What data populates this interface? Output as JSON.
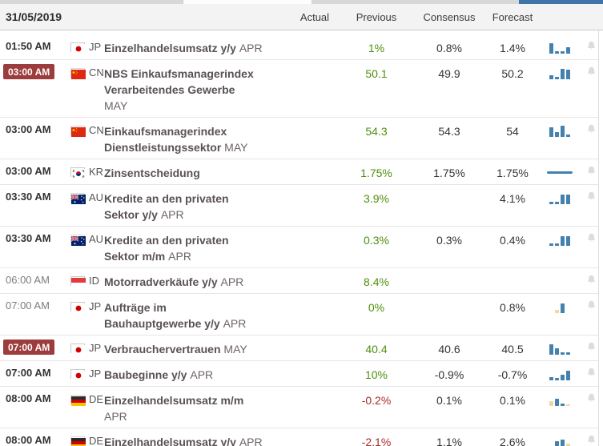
{
  "header": {
    "date": "31/05/2019",
    "columns": [
      "Actual",
      "Previous",
      "Consensus",
      "Forecast"
    ]
  },
  "colors": {
    "accent_blue": "#3e74a8",
    "badge_red": "#9d3c3c",
    "value_green": "#4f8f0a",
    "value_red": "#a82b2b",
    "bar_blue": "#4381af",
    "bar_tan": "#efd7a0",
    "bell_gray": "#dcdcdc"
  },
  "rows": [
    {
      "time": "01:50 AM",
      "muted": false,
      "highlight": false,
      "country": "JP",
      "event_lines": [
        "Einzelhandelsumsatz y/y"
      ],
      "period": "APR",
      "period_new_line": false,
      "actual": "",
      "previous": "1%",
      "previous_color": "green",
      "consensus": "0.8%",
      "forecast": "1.4%",
      "chart": {
        "type": "bars",
        "bars": [
          {
            "h": 13,
            "c": "blue"
          },
          {
            "h": 3,
            "c": "blue"
          },
          {
            "h": 3,
            "c": "blue"
          },
          {
            "h": 8,
            "c": "blue"
          }
        ]
      },
      "bell": true
    },
    {
      "time": "03:00 AM",
      "muted": false,
      "highlight": true,
      "country": "CN",
      "event_lines": [
        "NBS Einkaufsmanagerindex",
        "Verarbeitendes Gewerbe"
      ],
      "period": "MAY",
      "period_new_line": true,
      "actual": "",
      "previous": "50.1",
      "previous_color": "green",
      "consensus": "49.9",
      "forecast": "50.2",
      "chart": {
        "type": "bars",
        "bars": [
          {
            "h": 5,
            "c": "blue"
          },
          {
            "h": 3,
            "c": "blue"
          },
          {
            "h": 13,
            "c": "blue"
          },
          {
            "h": 12,
            "c": "blue"
          }
        ]
      },
      "bell": true
    },
    {
      "time": "03:00 AM",
      "muted": false,
      "highlight": false,
      "country": "CN",
      "event_lines": [
        "Einkaufsmanagerindex",
        "Dienstleistungssektor"
      ],
      "period": "MAY",
      "period_new_line": false,
      "actual": "",
      "previous": "54.3",
      "previous_color": "green",
      "consensus": "54.3",
      "forecast": "54",
      "chart": {
        "type": "bars",
        "bars": [
          {
            "h": 12,
            "c": "blue"
          },
          {
            "h": 6,
            "c": "blue"
          },
          {
            "h": 14,
            "c": "blue"
          },
          {
            "h": 3,
            "c": "blue"
          }
        ]
      },
      "bell": true
    },
    {
      "time": "03:00 AM",
      "muted": false,
      "highlight": false,
      "country": "KR",
      "event_lines": [
        "Zinsentscheidung"
      ],
      "period": "",
      "period_new_line": false,
      "actual": "",
      "previous": "1.75%",
      "previous_color": "green",
      "consensus": "1.75%",
      "forecast": "1.75%",
      "chart": {
        "type": "line"
      },
      "bell": true
    },
    {
      "time": "03:30 AM",
      "muted": false,
      "highlight": false,
      "country": "AU",
      "event_lines": [
        "Kredite an den privaten",
        "Sektor y/y"
      ],
      "period": "APR",
      "period_new_line": false,
      "actual": "",
      "previous": "3.9%",
      "previous_color": "green",
      "consensus": "",
      "forecast": "4.1%",
      "chart": {
        "type": "bars",
        "bars": [
          {
            "h": 3,
            "c": "blue"
          },
          {
            "h": 3,
            "c": "blue"
          },
          {
            "h": 12,
            "c": "blue"
          },
          {
            "h": 12,
            "c": "blue"
          }
        ]
      },
      "bell": true
    },
    {
      "time": "03:30 AM",
      "muted": false,
      "highlight": false,
      "country": "AU",
      "event_lines": [
        "Kredite an den privaten",
        "Sektor m/m"
      ],
      "period": "APR",
      "period_new_line": false,
      "actual": "",
      "previous": "0.3%",
      "previous_color": "green",
      "consensus": "0.3%",
      "forecast": "0.4%",
      "chart": {
        "type": "bars",
        "bars": [
          {
            "h": 3,
            "c": "blue"
          },
          {
            "h": 3,
            "c": "blue"
          },
          {
            "h": 12,
            "c": "blue"
          },
          {
            "h": 12,
            "c": "blue"
          }
        ]
      },
      "bell": true
    },
    {
      "time": "06:00 AM",
      "muted": true,
      "highlight": false,
      "country": "ID",
      "event_lines": [
        "Motorradverkäufe y/y"
      ],
      "period": "APR",
      "period_new_line": false,
      "actual": "",
      "previous": "8.4%",
      "previous_color": "green",
      "consensus": "",
      "forecast": "",
      "chart": {
        "type": "none"
      },
      "bell": true
    },
    {
      "time": "07:00 AM",
      "muted": true,
      "highlight": false,
      "country": "JP",
      "event_lines": [
        "Aufträge im",
        "Bauhauptgewerbe y/y"
      ],
      "period": "APR",
      "period_new_line": false,
      "actual": "",
      "previous": "0%",
      "previous_color": "green",
      "consensus": "",
      "forecast": "0.8%",
      "chart": {
        "type": "bars",
        "bars": [
          {
            "h": 4,
            "c": "tan"
          },
          {
            "h": 12,
            "c": "blue"
          }
        ]
      },
      "bell": true
    },
    {
      "time": "07:00 AM",
      "muted": false,
      "highlight": true,
      "country": "JP",
      "event_lines": [
        "Verbrauchervertrauen"
      ],
      "period": "MAY",
      "period_new_line": false,
      "actual": "",
      "previous": "40.4",
      "previous_color": "green",
      "consensus": "40.6",
      "forecast": "40.5",
      "chart": {
        "type": "bars",
        "bars": [
          {
            "h": 13,
            "c": "blue"
          },
          {
            "h": 8,
            "c": "blue"
          },
          {
            "h": 3,
            "c": "blue"
          },
          {
            "h": 3,
            "c": "blue"
          }
        ]
      },
      "bell": true
    },
    {
      "time": "07:00 AM",
      "muted": false,
      "highlight": false,
      "country": "JP",
      "event_lines": [
        "Baubeginne y/y"
      ],
      "period": "APR",
      "period_new_line": false,
      "actual": "",
      "previous": "10%",
      "previous_color": "green",
      "consensus": "-0.9%",
      "forecast": "-0.7%",
      "chart": {
        "type": "bars",
        "bars": [
          {
            "h": 4,
            "c": "blue"
          },
          {
            "h": 3,
            "c": "blue"
          },
          {
            "h": 7,
            "c": "blue"
          },
          {
            "h": 12,
            "c": "blue"
          }
        ]
      },
      "bell": true
    },
    {
      "time": "08:00 AM",
      "muted": false,
      "highlight": false,
      "country": "DE",
      "event_lines": [
        "Einzelhandelsumsatz m/m"
      ],
      "period": "APR",
      "period_new_line": true,
      "actual": "",
      "previous": "-0.2%",
      "previous_color": "red",
      "consensus": "0.1%",
      "forecast": "0.1%",
      "chart": {
        "type": "bars",
        "bars": [
          {
            "h": 6,
            "c": "tan"
          },
          {
            "h": 9,
            "c": "blue"
          },
          {
            "h": 3,
            "c": "blue"
          },
          {
            "h": 2,
            "c": "tan"
          }
        ]
      },
      "bell": true
    },
    {
      "time": "08:00 AM",
      "muted": false,
      "highlight": false,
      "country": "DE",
      "event_lines": [
        "Einzelhandelsumsatz y/y"
      ],
      "period": "APR",
      "period_new_line": false,
      "actual": "",
      "previous": "-2.1%",
      "previous_color": "red",
      "consensus": "1.1%",
      "forecast": "2.6%",
      "chart": {
        "type": "bars",
        "bars": [
          {
            "h": 2,
            "c": "tan"
          },
          {
            "h": 8,
            "c": "blue"
          },
          {
            "h": 10,
            "c": "blue"
          },
          {
            "h": 5,
            "c": "tan"
          }
        ]
      },
      "bell": true
    }
  ]
}
